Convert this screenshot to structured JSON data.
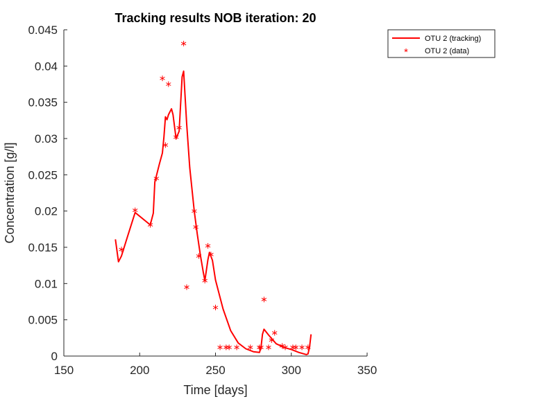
{
  "chart_data": {
    "type": "line",
    "title": "Tracking results NOB iteration: 20",
    "xlabel": "Time [days]",
    "ylabel": "Concentration [g/l]",
    "xlim": [
      150,
      350
    ],
    "ylim": [
      0,
      0.045
    ],
    "xticks": [
      150,
      200,
      250,
      300,
      350
    ],
    "xtick_labels": [
      "150",
      "200",
      "250",
      "300",
      "350"
    ],
    "yticks": [
      0,
      0.005,
      0.01,
      0.015,
      0.02,
      0.025,
      0.03,
      0.035,
      0.04,
      0.045
    ],
    "ytick_labels": [
      "0",
      "0.005",
      "0.01",
      "0.015",
      "0.02",
      "0.025",
      "0.03",
      "0.035",
      "0.04",
      "0.045"
    ],
    "grid": false,
    "legend_position": "top-right",
    "colors": {
      "series": "#ff0000",
      "axis": "#262626"
    },
    "series": [
      {
        "name": "OTU 2 (tracking)",
        "style": "line",
        "x": [
          184,
          186,
          188,
          192,
          197,
          207,
          209,
          210,
          213,
          215,
          216,
          217,
          218,
          219,
          221,
          222,
          224,
          226,
          228,
          229,
          231,
          233,
          236,
          238,
          240,
          242,
          243,
          245,
          246,
          248,
          250,
          255,
          260,
          265,
          270,
          275,
          279,
          280,
          281,
          282,
          285,
          290,
          295,
          300,
          305,
          310,
          311,
          312,
          313
        ],
        "y": [
          0.0161,
          0.013,
          0.0138,
          0.0165,
          0.0198,
          0.0181,
          0.0197,
          0.024,
          0.0265,
          0.028,
          0.0302,
          0.033,
          0.0326,
          0.0333,
          0.0341,
          0.0333,
          0.03,
          0.031,
          0.0385,
          0.0393,
          0.032,
          0.026,
          0.02,
          0.0168,
          0.014,
          0.0115,
          0.0104,
          0.0133,
          0.0143,
          0.0132,
          0.0105,
          0.0065,
          0.0035,
          0.0018,
          0.001,
          0.0006,
          0.0005,
          0.0012,
          0.003,
          0.0037,
          0.0029,
          0.0017,
          0.0012,
          0.0009,
          0.0005,
          0.0002,
          0.0003,
          0.0012,
          0.003
        ]
      },
      {
        "name": "OTU 2 (data)",
        "style": "marker",
        "marker": "*",
        "x": [
          188,
          197,
          207,
          211,
          215,
          217,
          219,
          224,
          226,
          229,
          231,
          236,
          237,
          239,
          243,
          245,
          247,
          250,
          253,
          257,
          259,
          264,
          273,
          279,
          280,
          282,
          285,
          287,
          289,
          294,
          296,
          301,
          303,
          307,
          311
        ],
        "y": [
          0.0147,
          0.0201,
          0.0181,
          0.0245,
          0.0383,
          0.0291,
          0.0375,
          0.0302,
          0.0315,
          0.0431,
          0.0095,
          0.02,
          0.0178,
          0.0138,
          0.0104,
          0.0152,
          0.014,
          0.0067,
          0.0012,
          0.0012,
          0.0012,
          0.0012,
          0.0012,
          0.0012,
          0.0012,
          0.0078,
          0.0012,
          0.0022,
          0.0032,
          0.0014,
          0.0012,
          0.0012,
          0.0012,
          0.0012,
          0.0012
        ]
      }
    ]
  }
}
